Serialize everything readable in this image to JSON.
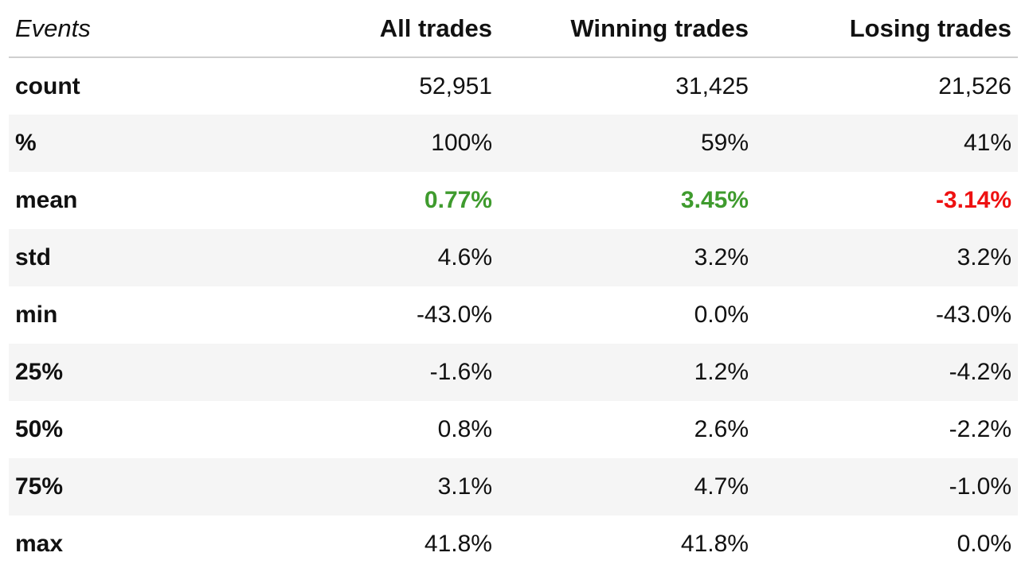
{
  "colors": {
    "positive": "#3f9b2e",
    "negative": "#ee1111",
    "stripe": "#f5f5f5",
    "header_rule": "#cfcfcf"
  },
  "header": {
    "index_label": "Events",
    "columns": [
      "All trades",
      "Winning trades",
      "Losing trades"
    ]
  },
  "rows": [
    {
      "label": "count",
      "values": [
        "52,951",
        "31,425",
        "21,526"
      ]
    },
    {
      "label": "%",
      "values": [
        "100%",
        "59%",
        "41%"
      ]
    },
    {
      "label": "mean",
      "values": [
        "0.77%",
        "3.45%",
        "-3.14%"
      ]
    },
    {
      "label": "std",
      "values": [
        "4.6%",
        "3.2%",
        "3.2%"
      ]
    },
    {
      "label": "min",
      "values": [
        "-43.0%",
        "0.0%",
        "-43.0%"
      ]
    },
    {
      "label": "25%",
      "values": [
        "-1.6%",
        "1.2%",
        "-4.2%"
      ]
    },
    {
      "label": "50%",
      "values": [
        "0.8%",
        "2.6%",
        "-2.2%"
      ]
    },
    {
      "label": "75%",
      "values": [
        "3.1%",
        "4.7%",
        "-1.0%"
      ]
    },
    {
      "label": "max",
      "values": [
        "41.8%",
        "41.8%",
        "0.0%"
      ]
    }
  ]
}
